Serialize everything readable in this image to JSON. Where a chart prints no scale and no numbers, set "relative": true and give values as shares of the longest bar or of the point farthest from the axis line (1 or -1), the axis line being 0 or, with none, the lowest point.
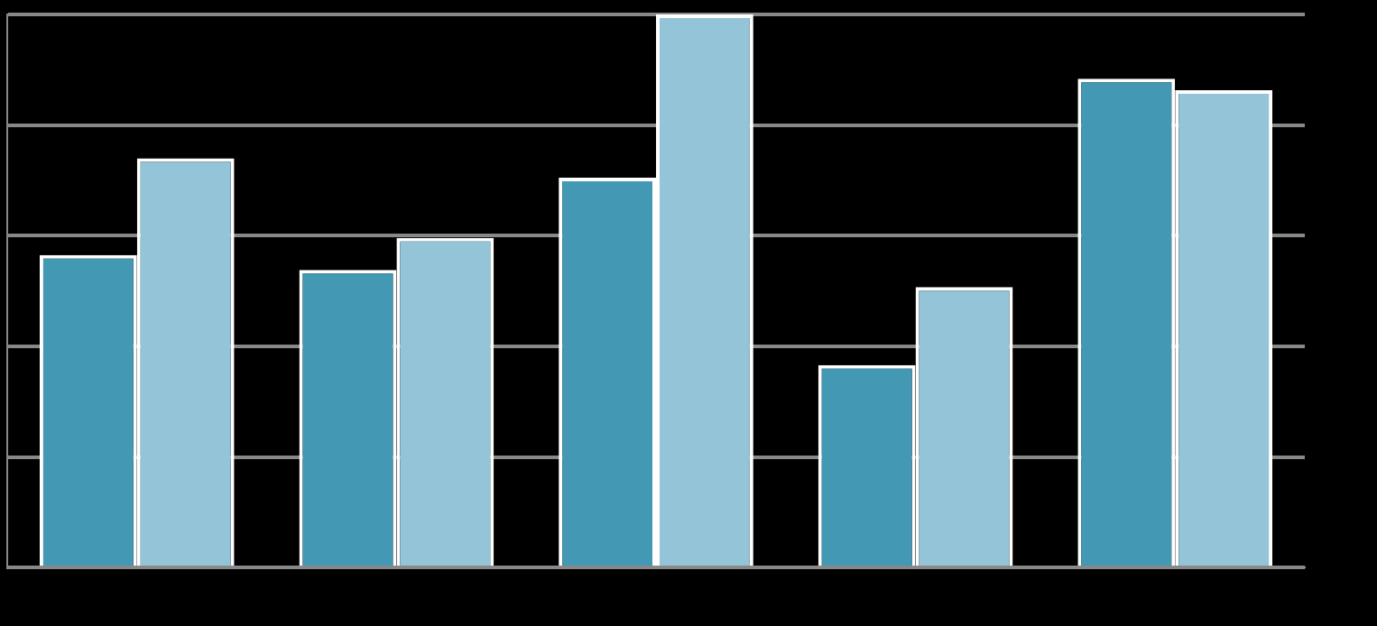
{
  "chart_data": {
    "type": "bar",
    "relative": true,
    "grid": "y",
    "categories": [
      null,
      null,
      null,
      null,
      null
    ],
    "series": [
      {
        "color": "#4398b4",
        "values": [
          0.565,
          0.538,
          0.705,
          0.366,
          0.884
        ]
      },
      {
        "color": "#93c4d8",
        "values": [
          0.74,
          0.596,
          1,
          0.507,
          0.863
        ]
      }
    ]
  }
}
